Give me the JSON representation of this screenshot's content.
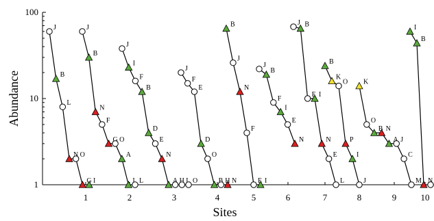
{
  "chart_data": {
    "type": "line",
    "title": "",
    "xlabel": "Sites",
    "ylabel": "Abundance",
    "y_scale": "log",
    "ylim": [
      1,
      100
    ],
    "y_ticks": [
      "1",
      "10",
      "100"
    ],
    "x_tick_labels": [
      "1",
      "2",
      "3",
      "4",
      "5",
      "6",
      "7",
      "8",
      "9",
      "10"
    ],
    "grid": false,
    "legend": "none",
    "marker_colors": {
      "circle": "#ffffff",
      "green": "#5aaa3c",
      "red": "#d92020",
      "yellow": "#f0e030"
    },
    "series": [
      {
        "site": "1",
        "points": [
          {
            "label": "J",
            "value": 60,
            "marker": "circle"
          },
          {
            "label": "B",
            "value": 17,
            "marker": "green"
          },
          {
            "label": "L",
            "value": 8,
            "marker": "circle"
          },
          {
            "label": "N",
            "value": 2,
            "marker": "red"
          },
          {
            "label": "O",
            "value": 2,
            "marker": "circle"
          },
          {
            "label": "G",
            "value": 1,
            "marker": "red"
          },
          {
            "label": "I",
            "value": 1,
            "marker": "green"
          }
        ]
      },
      {
        "site": "2",
        "points": [
          {
            "label": "J",
            "value": 60,
            "marker": "circle"
          },
          {
            "label": "B",
            "value": 30,
            "marker": "green"
          },
          {
            "label": "N",
            "value": 7,
            "marker": "red"
          },
          {
            "label": "F",
            "value": 5,
            "marker": "circle"
          },
          {
            "label": "G",
            "value": 3,
            "marker": "red"
          },
          {
            "label": "O",
            "value": 3,
            "marker": "circle"
          },
          {
            "label": "A",
            "value": 2,
            "marker": "green"
          },
          {
            "label": "I",
            "value": 1,
            "marker": "green"
          },
          {
            "label": "L",
            "value": 1,
            "marker": "circle"
          }
        ]
      },
      {
        "site": "3",
        "points": [
          {
            "label": "J",
            "value": 38,
            "marker": "circle"
          },
          {
            "label": "I",
            "value": 23,
            "marker": "green"
          },
          {
            "label": "F",
            "value": 16,
            "marker": "circle"
          },
          {
            "label": "B",
            "value": 12,
            "marker": "green"
          },
          {
            "label": "D",
            "value": 4,
            "marker": "green"
          },
          {
            "label": "E",
            "value": 3,
            "marker": "circle"
          },
          {
            "label": "N",
            "value": 2,
            "marker": "red"
          },
          {
            "label": "A",
            "value": 1,
            "marker": "green"
          },
          {
            "label": "H",
            "value": 1,
            "marker": "circle"
          },
          {
            "label": "L",
            "value": 1,
            "marker": "circle"
          },
          {
            "label": "O",
            "value": 1,
            "marker": "circle"
          }
        ]
      },
      {
        "site": "4",
        "points": [
          {
            "label": "J",
            "value": 20,
            "marker": "circle"
          },
          {
            "label": "F",
            "value": 15,
            "marker": "circle"
          },
          {
            "label": "E",
            "value": 12,
            "marker": "circle"
          },
          {
            "label": "D",
            "value": 3,
            "marker": "green"
          },
          {
            "label": "O",
            "value": 2,
            "marker": "circle"
          },
          {
            "label": "B",
            "value": 1,
            "marker": "green"
          },
          {
            "label": "H",
            "value": 1,
            "marker": "circle"
          },
          {
            "label": "N",
            "value": 1,
            "marker": "red"
          }
        ]
      },
      {
        "site": "5",
        "points": [
          {
            "label": "B",
            "value": 65,
            "marker": "green"
          },
          {
            "label": "J",
            "value": 26,
            "marker": "circle"
          },
          {
            "label": "N",
            "value": 12,
            "marker": "red"
          },
          {
            "label": "F",
            "value": 4,
            "marker": "circle"
          },
          {
            "label": "E",
            "value": 1,
            "marker": "circle"
          },
          {
            "label": "I",
            "value": 1,
            "marker": "green"
          }
        ]
      },
      {
        "site": "6",
        "points": [
          {
            "label": "J",
            "value": 22,
            "marker": "circle"
          },
          {
            "label": "B",
            "value": 19,
            "marker": "green"
          },
          {
            "label": "F",
            "value": 9,
            "marker": "circle"
          },
          {
            "label": "I",
            "value": 7,
            "marker": "green"
          },
          {
            "label": "E",
            "value": 5,
            "marker": "circle"
          },
          {
            "label": "N",
            "value": 3,
            "marker": "red"
          }
        ]
      },
      {
        "site": "7",
        "points": [
          {
            "label": "J",
            "value": 68,
            "marker": "circle"
          },
          {
            "label": "B",
            "value": 65,
            "marker": "green"
          },
          {
            "label": "F",
            "value": 10,
            "marker": "circle"
          },
          {
            "label": "I",
            "value": 10,
            "marker": "green"
          },
          {
            "label": "N",
            "value": 3,
            "marker": "red"
          },
          {
            "label": "E",
            "value": 2,
            "marker": "circle"
          },
          {
            "label": "L",
            "value": 1,
            "marker": "circle"
          }
        ]
      },
      {
        "site": "8",
        "points": [
          {
            "label": "B",
            "value": 24,
            "marker": "green"
          },
          {
            "label": "K",
            "value": 16,
            "marker": "yellow"
          },
          {
            "label": "O",
            "value": 14,
            "marker": "circle"
          },
          {
            "label": "P",
            "value": 3,
            "marker": "red"
          },
          {
            "label": "I",
            "value": 2,
            "marker": "green"
          },
          {
            "label": "J",
            "value": 1,
            "marker": "circle"
          }
        ]
      },
      {
        "site": "9",
        "points": [
          {
            "label": "K",
            "value": 14,
            "marker": "yellow"
          },
          {
            "label": "O",
            "value": 5,
            "marker": "circle"
          },
          {
            "label": "B",
            "value": 4,
            "marker": "green"
          },
          {
            "label": "N",
            "value": 4,
            "marker": "red"
          },
          {
            "label": "A",
            "value": 3,
            "marker": "green"
          },
          {
            "label": "J",
            "value": 3,
            "marker": "circle"
          },
          {
            "label": "C",
            "value": 2,
            "marker": "circle"
          },
          {
            "label": "M",
            "value": 1,
            "marker": "circle"
          }
        ]
      },
      {
        "site": "10",
        "points": [
          {
            "label": "I",
            "value": 60,
            "marker": "green"
          },
          {
            "label": "B",
            "value": 44,
            "marker": "green"
          },
          {
            "label": "N",
            "value": 1,
            "marker": "red"
          },
          {
            "label": "O",
            "value": 1,
            "marker": "circle"
          }
        ]
      }
    ]
  }
}
